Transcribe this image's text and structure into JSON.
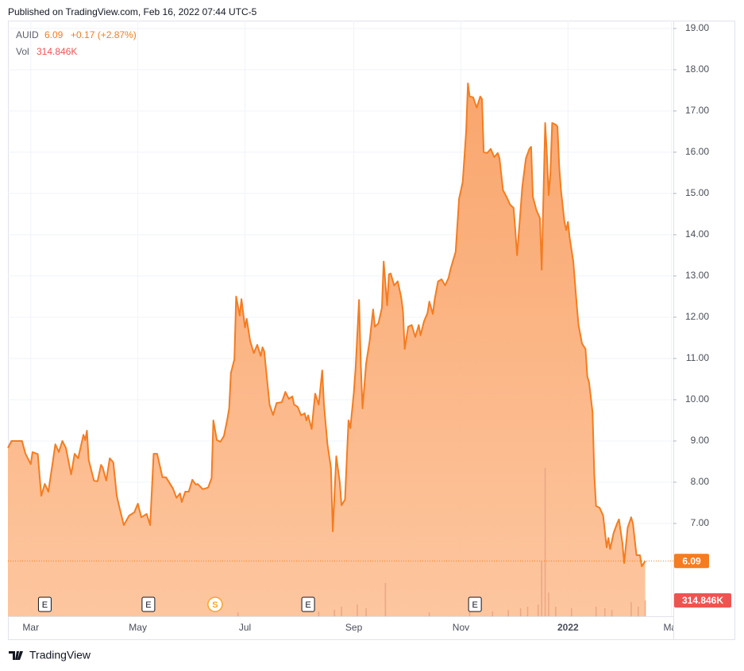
{
  "header": "Published on TradingView.com, Feb 16, 2022 07:44 UTC-5",
  "footer": "TradingView",
  "chart_data": {
    "type": "area",
    "symbol": "AUID",
    "last_price": 6.09,
    "change": "+0.17 (+2.87%)",
    "last_volume": {
      "value": 314.846,
      "label": "314.846K"
    },
    "grid": true,
    "xlim": [
      -13,
      366
    ],
    "xticks": [
      {
        "value": 0,
        "label": "Mar"
      },
      {
        "value": 61,
        "label": "May"
      },
      {
        "value": 122,
        "label": "Jul"
      },
      {
        "value": 184,
        "label": "Sep"
      },
      {
        "value": 245,
        "label": "Nov"
      },
      {
        "value": 306,
        "label": "2022"
      },
      {
        "value": 365,
        "label": "Mar"
      }
    ],
    "ylim": [
      4.75,
      19.19
    ],
    "yticks": [
      {
        "value": 7,
        "label": "7.00"
      },
      {
        "value": 8,
        "label": "8.00"
      },
      {
        "value": 9,
        "label": "9.00"
      },
      {
        "value": 10,
        "label": "10.00"
      },
      {
        "value": 11,
        "label": "11.00"
      },
      {
        "value": 12,
        "label": "12.00"
      },
      {
        "value": 13,
        "label": "13.00"
      },
      {
        "value": 14,
        "label": "14.00"
      },
      {
        "value": 15,
        "label": "15.00"
      },
      {
        "value": 16,
        "label": "16.00"
      },
      {
        "value": 17,
        "label": "17.00"
      },
      {
        "value": 18,
        "label": "18.00"
      },
      {
        "value": 19,
        "label": "19.00"
      }
    ],
    "y2lim": [
      0,
      11800
    ],
    "x": [
      -13,
      -11,
      -5,
      -3,
      0,
      1,
      4,
      6,
      8,
      10,
      13,
      14,
      16,
      18,
      20,
      23,
      25,
      27,
      30,
      31,
      32,
      33,
      36,
      38,
      40,
      41,
      43,
      45,
      47,
      49,
      50,
      53,
      56,
      59,
      61,
      63,
      66,
      68,
      70,
      72,
      75,
      77,
      81,
      83,
      85,
      86,
      88,
      90,
      92,
      94,
      95,
      98,
      101,
      103,
      104,
      106,
      108,
      110,
      112,
      113,
      114,
      116,
      117,
      119,
      120,
      122,
      123,
      125,
      127,
      129,
      131,
      132,
      133,
      136,
      138,
      140,
      143,
      145,
      147,
      149,
      150,
      152,
      154,
      156,
      157,
      158,
      160,
      162,
      164,
      166,
      167,
      169,
      171,
      172,
      174,
      176,
      177,
      179,
      181,
      182,
      184,
      185,
      187,
      188,
      189,
      191,
      193,
      194,
      195,
      196,
      198,
      200,
      201,
      203,
      204,
      205,
      207,
      209,
      211,
      212,
      213,
      215,
      217,
      219,
      221,
      222,
      224,
      226,
      227,
      229,
      230,
      232,
      234,
      236,
      238,
      239,
      241,
      242,
      244,
      246,
      248,
      249,
      250,
      252,
      254,
      256,
      257,
      258,
      260,
      262,
      264,
      266,
      267,
      269,
      271,
      273,
      275,
      276,
      277,
      279,
      280,
      282,
      284,
      285,
      286,
      288,
      290,
      291,
      293,
      294,
      295,
      296,
      297,
      299,
      300,
      301,
      302,
      304,
      305,
      306,
      307,
      309,
      311,
      312,
      314,
      316,
      317,
      318,
      320,
      321,
      322,
      324,
      326,
      328,
      329,
      330,
      332,
      334,
      335,
      337,
      338,
      340,
      342,
      343,
      345,
      347,
      348,
      350
    ],
    "series": [
      {
        "name": "AUID",
        "color": "#f57c1f",
        "fill": "#fba66b",
        "values": [
          8.83,
          9.0,
          9.0,
          8.69,
          8.44,
          8.73,
          8.68,
          7.67,
          7.96,
          7.77,
          8.63,
          8.92,
          8.73,
          9.0,
          8.83,
          8.19,
          8.69,
          8.58,
          9.15,
          9.02,
          9.25,
          8.54,
          8.04,
          8.02,
          8.42,
          8.35,
          8.04,
          8.58,
          8.48,
          7.67,
          7.48,
          6.96,
          7.19,
          7.27,
          7.48,
          7.15,
          7.23,
          6.96,
          8.69,
          8.69,
          8.12,
          8.12,
          7.85,
          7.62,
          7.73,
          7.52,
          7.77,
          7.77,
          8.06,
          7.94,
          7.96,
          7.83,
          7.87,
          8.1,
          9.5,
          9.02,
          8.98,
          9.12,
          9.54,
          9.79,
          10.65,
          10.98,
          12.5,
          12.04,
          12.44,
          11.75,
          11.96,
          11.42,
          11.13,
          11.33,
          11.06,
          11.27,
          11.17,
          9.88,
          9.63,
          9.92,
          9.94,
          10.19,
          10.02,
          10.08,
          9.88,
          9.83,
          9.62,
          9.67,
          9.5,
          9.62,
          9.29,
          10.15,
          9.88,
          10.71,
          9.88,
          8.92,
          8.35,
          6.81,
          8.63,
          8.0,
          7.44,
          7.58,
          9.5,
          9.31,
          10.17,
          10.75,
          12.42,
          10.85,
          9.79,
          10.88,
          11.42,
          11.81,
          12.19,
          11.77,
          11.85,
          12.23,
          13.35,
          12.29,
          13.04,
          13.06,
          12.77,
          12.87,
          12.48,
          12.15,
          11.23,
          11.77,
          11.81,
          11.52,
          11.81,
          11.56,
          11.9,
          12.1,
          12.38,
          12.08,
          12.42,
          12.87,
          12.92,
          12.77,
          12.96,
          13.15,
          13.44,
          13.58,
          14.88,
          15.27,
          16.52,
          17.67,
          17.35,
          17.33,
          17.08,
          17.35,
          17.29,
          16.0,
          15.98,
          16.08,
          15.88,
          15.98,
          15.85,
          15.08,
          14.92,
          14.73,
          14.65,
          14.11,
          13.5,
          14.6,
          15.17,
          15.85,
          16.08,
          16.13,
          14.92,
          14.6,
          14.4,
          13.15,
          16.71,
          15.94,
          14.96,
          15.5,
          16.71,
          16.67,
          16.62,
          15.65,
          15.08,
          14.31,
          14.11,
          14.31,
          13.92,
          13.35,
          12.29,
          11.81,
          11.36,
          11.23,
          10.56,
          10.42,
          9.69,
          8.15,
          7.42,
          7.38,
          7.19,
          6.42,
          6.65,
          6.38,
          6.77,
          7.0,
          7.1,
          6.52,
          6.04,
          6.9,
          7.15,
          7.0,
          6.23,
          6.23,
          5.96,
          6.09
        ]
      }
    ],
    "volume": {
      "name": "Vol",
      "color": "#e6a382",
      "axis": "y2",
      "x": [
        118,
        164,
        173,
        177,
        186,
        191,
        202,
        227,
        250,
        263,
        272,
        279,
        283,
        289,
        291,
        293,
        295,
        299,
        308,
        322,
        327,
        331,
        342,
        346,
        350
      ],
      "values": [
        80,
        95,
        125,
        190,
        235,
        160,
        660,
        80,
        125,
        95,
        125,
        160,
        190,
        235,
        1100,
        2940,
        470,
        190,
        160,
        190,
        160,
        125,
        280,
        190,
        314.846
      ]
    },
    "events": [
      {
        "label": "E",
        "x": 8
      },
      {
        "label": "E",
        "x": 67
      },
      {
        "label": "S",
        "x": 105
      },
      {
        "label": "E",
        "x": 158
      },
      {
        "label": "E",
        "x": 253
      }
    ]
  }
}
